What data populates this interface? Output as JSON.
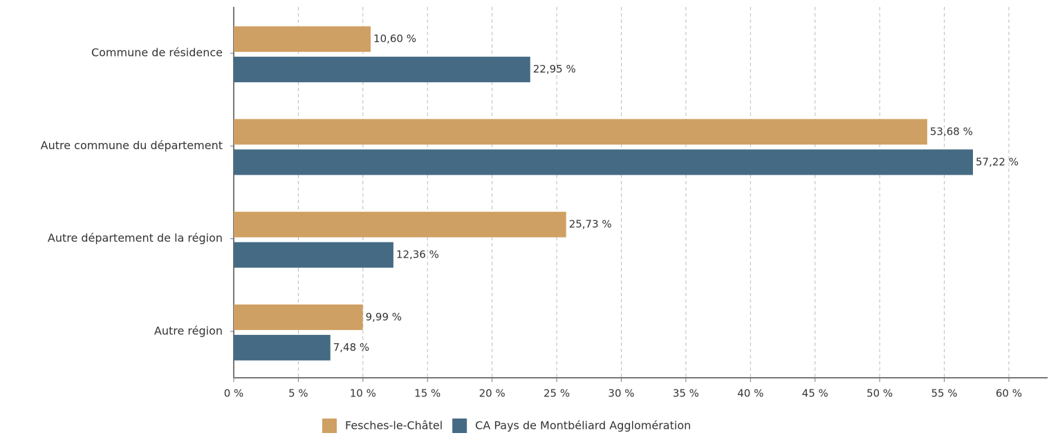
{
  "chart_data": {
    "type": "barh",
    "categories": [
      "Commune de résidence",
      "Autre commune du département",
      "Autre département de la région",
      "Autre région"
    ],
    "series": [
      {
        "name": "Fesches-le-Châtel",
        "color": "#cfa063",
        "values": [
          10.6,
          53.68,
          25.73,
          9.99
        ],
        "value_labels": [
          "10,60 %",
          "53,68 %",
          "25,73 %",
          "9,99 %"
        ]
      },
      {
        "name": "CA Pays de Montbéliard Agglomération",
        "color": "#456a84",
        "values": [
          22.95,
          57.22,
          12.36,
          7.48
        ],
        "value_labels": [
          "22,95 %",
          "57,22 %",
          "12,36 %",
          "7,48 %"
        ]
      }
    ],
    "xlim": [
      0,
      63
    ],
    "xticks": [
      {
        "value": 0,
        "label": "0 %"
      },
      {
        "value": 5,
        "label": "5 %"
      },
      {
        "value": 10,
        "label": "10 %"
      },
      {
        "value": 15,
        "label": "15 %"
      },
      {
        "value": 20,
        "label": "20 %"
      },
      {
        "value": 25,
        "label": "25 %"
      },
      {
        "value": 30,
        "label": "30 %"
      },
      {
        "value": 35,
        "label": "35 %"
      },
      {
        "value": 40,
        "label": "40 %"
      },
      {
        "value": 45,
        "label": "45 %"
      },
      {
        "value": 50,
        "label": "50 %"
      },
      {
        "value": 55,
        "label": "55 %"
      },
      {
        "value": 60,
        "label": "60 %"
      }
    ],
    "grid": true,
    "legend": "bottom"
  }
}
